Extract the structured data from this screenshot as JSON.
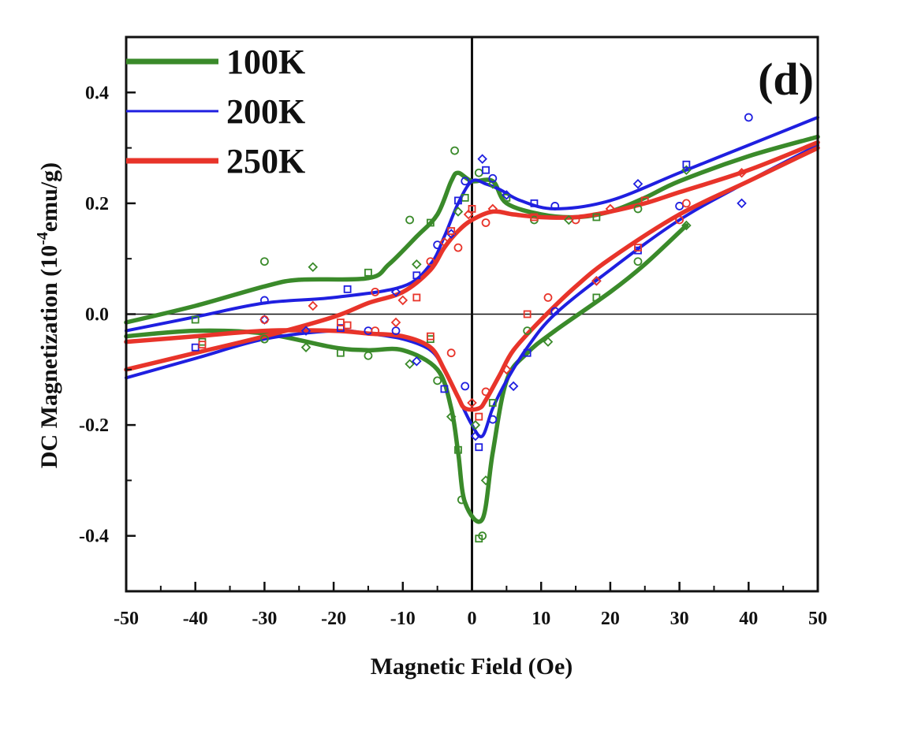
{
  "chart_data": {
    "type": "line",
    "panel_label": "(d)",
    "xlabel": "Magnetic Field (Oe)",
    "ylabel": "DC Magnetization (10",
    "ylabel_sup": "-4",
    "ylabel_unit": "emu/g)",
    "xlim": [
      -50,
      50
    ],
    "ylim": [
      -0.5,
      0.5
    ],
    "x_ticks": [
      -50,
      -40,
      -30,
      -20,
      -10,
      0,
      10,
      20,
      30,
      40,
      50
    ],
    "x_tick_labels": [
      "-50",
      "-40",
      "-30",
      "-20",
      "-10",
      "0",
      "10",
      "20",
      "30",
      "40",
      "50"
    ],
    "y_ticks": [
      -0.4,
      -0.2,
      0.0,
      0.2,
      0.4
    ],
    "y_tick_labels": [
      "-0.4",
      "-0.2",
      "0.0",
      "0.2",
      "0.4"
    ],
    "grid": false,
    "legend_position": "top-left",
    "reference_lines": {
      "x": 0,
      "y": 0
    },
    "series": [
      {
        "name": "100K",
        "color": "#3a8a2a",
        "branches": [
          [
            [
              -50,
              -0.015
            ],
            [
              -40,
              0.015
            ],
            [
              -30,
              0.05
            ],
            [
              -25,
              0.062
            ],
            [
              -15,
              0.065
            ],
            [
              -12,
              0.09
            ],
            [
              -8,
              0.14
            ],
            [
              -5,
              0.18
            ],
            [
              -3,
              0.24
            ],
            [
              -2,
              0.255
            ],
            [
              0,
              0.24
            ],
            [
              3,
              0.24
            ],
            [
              5,
              0.2
            ],
            [
              10,
              0.18
            ],
            [
              15,
              0.175
            ],
            [
              20,
              0.185
            ],
            [
              25,
              0.21
            ],
            [
              30,
              0.24
            ],
            [
              40,
              0.285
            ],
            [
              50,
              0.32
            ]
          ],
          [
            [
              -50,
              -0.04
            ],
            [
              -40,
              -0.03
            ],
            [
              -30,
              -0.035
            ],
            [
              -20,
              -0.06
            ],
            [
              -15,
              -0.065
            ],
            [
              -10,
              -0.065
            ],
            [
              -5,
              -0.1
            ],
            [
              -3,
              -0.17
            ],
            [
              -2,
              -0.25
            ],
            [
              -1,
              -0.34
            ],
            [
              1.5,
              -0.37
            ],
            [
              3,
              -0.25
            ],
            [
              5,
              -0.12
            ],
            [
              8,
              -0.07
            ],
            [
              12,
              -0.03
            ],
            [
              20,
              0.04
            ],
            [
              25,
              0.09
            ],
            [
              31,
              0.16
            ]
          ]
        ],
        "markers": [
          [
            -40,
            -0.01
          ],
          [
            -30,
            0.095
          ],
          [
            -23,
            0.085
          ],
          [
            -15,
            0.075
          ],
          [
            -9,
            0.17
          ],
          [
            -8,
            0.09
          ],
          [
            -6,
            0.165
          ],
          [
            -2.5,
            0.295
          ],
          [
            -2,
            0.185
          ],
          [
            -1,
            0.21
          ],
          [
            1,
            0.255
          ],
          [
            3,
            0.235
          ],
          [
            5,
            0.21
          ],
          [
            9,
            0.17
          ],
          [
            14,
            0.17
          ],
          [
            18,
            0.175
          ],
          [
            24,
            0.19
          ],
          [
            31,
            0.26
          ],
          [
            -39,
            -0.05
          ],
          [
            -30,
            -0.045
          ],
          [
            -24,
            -0.06
          ],
          [
            -19,
            -0.07
          ],
          [
            -15,
            -0.075
          ],
          [
            -9,
            -0.09
          ],
          [
            -6,
            -0.045
          ],
          [
            -5,
            -0.12
          ],
          [
            -3,
            -0.185
          ],
          [
            -2,
            -0.245
          ],
          [
            -1.5,
            -0.335
          ],
          [
            0.5,
            -0.2
          ],
          [
            1,
            -0.405
          ],
          [
            1.5,
            -0.4
          ],
          [
            2,
            -0.3
          ],
          [
            3,
            -0.16
          ],
          [
            8,
            -0.03
          ],
          [
            11,
            -0.05
          ],
          [
            18,
            0.03
          ],
          [
            24,
            0.095
          ],
          [
            31,
            0.16
          ]
        ]
      },
      {
        "name": "200K",
        "color": "#1f1fe0",
        "branches": [
          [
            [
              -50,
              -0.03
            ],
            [
              -40,
              -0.005
            ],
            [
              -30,
              0.02
            ],
            [
              -20,
              0.03
            ],
            [
              -10,
              0.05
            ],
            [
              -6,
              0.09
            ],
            [
              -4,
              0.14
            ],
            [
              -2,
              0.2
            ],
            [
              0,
              0.24
            ],
            [
              2,
              0.235
            ],
            [
              4,
              0.225
            ],
            [
              7,
              0.205
            ],
            [
              12,
              0.19
            ],
            [
              20,
              0.205
            ],
            [
              30,
              0.255
            ],
            [
              40,
              0.305
            ],
            [
              50,
              0.355
            ]
          ],
          [
            [
              -50,
              -0.115
            ],
            [
              -40,
              -0.08
            ],
            [
              -30,
              -0.045
            ],
            [
              -20,
              -0.03
            ],
            [
              -15,
              -0.035
            ],
            [
              -10,
              -0.045
            ],
            [
              -6,
              -0.065
            ],
            [
              -4,
              -0.1
            ],
            [
              -2,
              -0.15
            ],
            [
              0,
              -0.2
            ],
            [
              1.5,
              -0.22
            ],
            [
              3,
              -0.17
            ],
            [
              5,
              -0.12
            ],
            [
              8,
              -0.06
            ],
            [
              12,
              0.0
            ],
            [
              20,
              0.08
            ],
            [
              30,
              0.17
            ],
            [
              40,
              0.24
            ],
            [
              50,
              0.305
            ]
          ]
        ],
        "markers": [
          [
            -40,
            -0.06
          ],
          [
            -30,
            0.025
          ],
          [
            -24,
            -0.03
          ],
          [
            -18,
            0.045
          ],
          [
            -15,
            -0.03
          ],
          [
            -11,
            0.04
          ],
          [
            -8,
            0.07
          ],
          [
            -5,
            0.125
          ],
          [
            -3,
            0.145
          ],
          [
            -2,
            0.205
          ],
          [
            -1,
            0.24
          ],
          [
            1.5,
            0.28
          ],
          [
            2,
            0.26
          ],
          [
            3,
            0.245
          ],
          [
            5,
            0.215
          ],
          [
            9,
            0.2
          ],
          [
            12,
            0.195
          ],
          [
            24,
            0.235
          ],
          [
            31,
            0.27
          ],
          [
            40,
            0.355
          ],
          [
            -30,
            -0.01
          ],
          [
            -19,
            -0.025
          ],
          [
            -11,
            -0.03
          ],
          [
            -8,
            -0.085
          ],
          [
            -4,
            -0.135
          ],
          [
            -1,
            -0.13
          ],
          [
            0.5,
            -0.22
          ],
          [
            1,
            -0.24
          ],
          [
            3,
            -0.19
          ],
          [
            6,
            -0.13
          ],
          [
            8,
            -0.07
          ],
          [
            12,
            0.005
          ],
          [
            18,
            0.06
          ],
          [
            24,
            0.115
          ],
          [
            30,
            0.195
          ],
          [
            39,
            0.2
          ]
        ]
      },
      {
        "name": "250K",
        "color": "#e8342a",
        "branches": [
          [
            [
              -50,
              -0.05
            ],
            [
              -40,
              -0.04
            ],
            [
              -30,
              -0.03
            ],
            [
              -20,
              -0.03
            ],
            [
              -15,
              -0.035
            ],
            [
              -10,
              -0.04
            ],
            [
              -6,
              -0.06
            ],
            [
              -4,
              -0.1
            ],
            [
              -2,
              -0.15
            ],
            [
              -1,
              -0.17
            ],
            [
              1,
              -0.17
            ],
            [
              2,
              -0.155
            ],
            [
              4,
              -0.11
            ],
            [
              6,
              -0.065
            ],
            [
              10,
              -0.01
            ],
            [
              15,
              0.05
            ],
            [
              20,
              0.1
            ],
            [
              30,
              0.18
            ],
            [
              40,
              0.24
            ],
            [
              50,
              0.3
            ]
          ],
          [
            [
              -50,
              -0.1
            ],
            [
              -40,
              -0.07
            ],
            [
              -30,
              -0.04
            ],
            [
              -20,
              -0.005
            ],
            [
              -15,
              0.02
            ],
            [
              -10,
              0.04
            ],
            [
              -6,
              0.08
            ],
            [
              -4,
              0.12
            ],
            [
              -2,
              0.15
            ],
            [
              0,
              0.17
            ],
            [
              3,
              0.185
            ],
            [
              6,
              0.18
            ],
            [
              10,
              0.175
            ],
            [
              15,
              0.175
            ],
            [
              20,
              0.185
            ],
            [
              25,
              0.2
            ],
            [
              30,
              0.22
            ],
            [
              40,
              0.26
            ],
            [
              50,
              0.31
            ]
          ]
        ],
        "markers": [
          [
            -39,
            -0.055
          ],
          [
            -30,
            -0.01
          ],
          [
            -23,
            0.015
          ],
          [
            -18,
            -0.02
          ],
          [
            -14,
            0.04
          ],
          [
            -10,
            0.025
          ],
          [
            -8,
            0.03
          ],
          [
            -6,
            0.095
          ],
          [
            -4,
            0.13
          ],
          [
            -3,
            0.15
          ],
          [
            -2,
            0.12
          ],
          [
            -0.5,
            0.18
          ],
          [
            0,
            0.19
          ],
          [
            2,
            0.165
          ],
          [
            3,
            0.19
          ],
          [
            9,
            0.175
          ],
          [
            15,
            0.17
          ],
          [
            20,
            0.19
          ],
          [
            25,
            0.205
          ],
          [
            31,
            0.2
          ],
          [
            39,
            0.255
          ],
          [
            -19,
            -0.015
          ],
          [
            -14,
            -0.03
          ],
          [
            -11,
            -0.015
          ],
          [
            -6,
            -0.04
          ],
          [
            -3,
            -0.07
          ],
          [
            0,
            -0.16
          ],
          [
            1,
            -0.185
          ],
          [
            2,
            -0.14
          ],
          [
            5,
            -0.1
          ],
          [
            8,
            0.0
          ],
          [
            11,
            0.03
          ],
          [
            18,
            0.06
          ],
          [
            24,
            0.12
          ],
          [
            30,
            0.17
          ]
        ]
      }
    ]
  }
}
